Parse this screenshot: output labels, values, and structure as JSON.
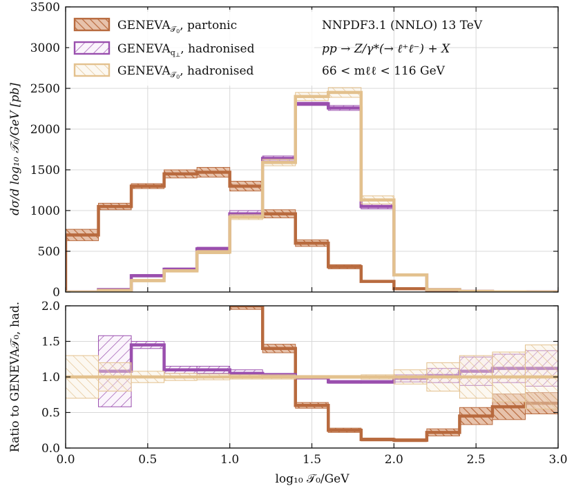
{
  "colors": {
    "partonic": "#b86a3e",
    "qperp": "#9a4fae",
    "tau0had": "#e3c18e",
    "grid": "#d8d8d8",
    "axis": "#111111"
  },
  "legend": {
    "items": [
      {
        "label_main": "GENEVA",
        "label_sub": "𝒯",
        "label_sub2": "0",
        "label_tail": ", partonic",
        "series": "partonic"
      },
      {
        "label_main": "GENEVA",
        "label_sub": "q",
        "label_sub2": "⊥",
        "label_tail": ", hadronised",
        "series": "qperp"
      },
      {
        "label_main": "GENEVA",
        "label_sub": "𝒯",
        "label_sub2": "0",
        "label_tail": ", hadronised",
        "series": "tau0had"
      }
    ],
    "info": [
      "NNPDF3.1 (NNLO) 13 TeV",
      "pp → Z/γ*(→ ℓ⁺ℓ⁻) + X",
      "66 < mℓℓ < 116 GeV"
    ]
  },
  "chart_data": [
    {
      "type": "histogram",
      "panel": "main",
      "ylabel": "dσ/d log₁₀ 𝒯₀/GeV [pb]",
      "xlim": [
        0,
        3
      ],
      "ylim": [
        0,
        3500
      ],
      "yticks": [
        "0",
        "500",
        "1000",
        "1500",
        "2000",
        "2500",
        "3000",
        "3500"
      ],
      "yticks_values": [
        0,
        500,
        1000,
        1500,
        2000,
        2500,
        3000,
        3500
      ],
      "bin_edges": [
        0,
        0.2,
        0.4,
        0.6,
        0.8,
        1.0,
        1.2,
        1.4,
        1.6,
        1.8,
        2.0,
        2.2,
        2.4,
        2.6,
        2.8,
        3.0
      ],
      "series": [
        {
          "name": "partonic",
          "values": [
            700,
            1050,
            1300,
            1450,
            1470,
            1300,
            960,
            600,
            310,
            130,
            40,
            10,
            3,
            1,
            0
          ],
          "err": [
            70,
            40,
            30,
            50,
            60,
            60,
            50,
            40,
            25,
            10,
            5,
            2,
            1,
            0,
            0
          ]
        },
        {
          "name": "qperp",
          "values": [
            0,
            30,
            200,
            280,
            530,
            960,
            1640,
            2310,
            2260,
            1050,
            210,
            30,
            8,
            2,
            0
          ],
          "err": [
            0,
            10,
            15,
            15,
            20,
            40,
            30,
            20,
            30,
            30,
            10,
            4,
            1,
            1,
            0
          ]
        },
        {
          "name": "tau0had",
          "values": [
            0,
            20,
            140,
            260,
            490,
            920,
            1590,
            2400,
            2450,
            1130,
            210,
            30,
            8,
            2,
            0
          ],
          "err": [
            0,
            10,
            15,
            15,
            20,
            30,
            40,
            50,
            60,
            50,
            10,
            4,
            1,
            1,
            0
          ]
        }
      ]
    },
    {
      "type": "histogram",
      "panel": "ratio",
      "ylabel": "Ratio to GENEVA𝒯₀, had.",
      "xlabel": "log₁₀ 𝒯₀/GeV",
      "xlim": [
        0,
        3
      ],
      "ylim": [
        0,
        2
      ],
      "yticks": [
        "0.0",
        "0.5",
        "1.0",
        "1.5",
        "2.0"
      ],
      "yticks_values": [
        0,
        0.5,
        1.0,
        1.5,
        2.0
      ],
      "xticks": [
        "0.0",
        "0.5",
        "1.0",
        "1.5",
        "2.0",
        "2.5",
        "3.0"
      ],
      "xticks_values": [
        0,
        0.5,
        1.0,
        1.5,
        2.0,
        2.5,
        3.0
      ],
      "bin_edges": [
        0,
        0.2,
        0.4,
        0.6,
        0.8,
        1.0,
        1.2,
        1.4,
        1.6,
        1.8,
        2.0,
        2.2,
        2.4,
        2.6,
        2.8,
        3.0
      ],
      "series": [
        {
          "name": "partonic",
          "values": [
            null,
            null,
            null,
            null,
            null,
            2.0,
            1.4,
            0.6,
            0.25,
            0.12,
            0.11,
            0.22,
            0.45,
            0.58,
            0.63
          ],
          "err": [
            0,
            0,
            0,
            0,
            0,
            0.05,
            0.06,
            0.04,
            0.03,
            0.02,
            0.02,
            0.05,
            0.12,
            0.18,
            0.15
          ]
        },
        {
          "name": "qperp",
          "values": [
            null,
            1.08,
            1.45,
            1.1,
            1.1,
            1.05,
            1.03,
            0.99,
            0.93,
            0.93,
            0.98,
            1.02,
            1.08,
            1.12,
            1.12
          ],
          "err": [
            0,
            0.5,
            0.05,
            0.05,
            0.05,
            0.05,
            0.02,
            0.02,
            0.02,
            0.02,
            0.05,
            0.1,
            0.2,
            0.2,
            0.25
          ]
        },
        {
          "name": "tau0had",
          "values": [
            1.0,
            1.0,
            1.0,
            1.0,
            1.0,
            1.0,
            1.0,
            1.0,
            1.0,
            1.0,
            1.0,
            1.0,
            1.0,
            1.0,
            1.0
          ],
          "err": [
            0.3,
            0.2,
            0.08,
            0.05,
            0.04,
            0.03,
            0.03,
            0.02,
            0.02,
            0.03,
            0.1,
            0.2,
            0.3,
            0.35,
            0.45
          ]
        }
      ]
    }
  ]
}
